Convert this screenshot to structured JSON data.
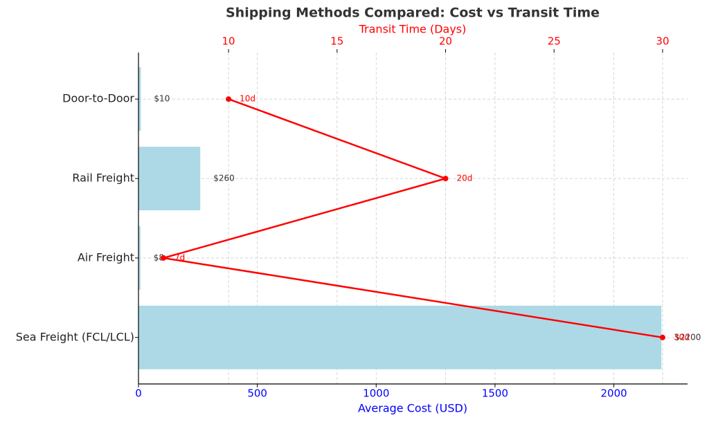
{
  "chart_data": {
    "type": "bar",
    "orientation": "horizontal",
    "title": "Shipping Methods Compared: Cost vs Transit Time",
    "xlabel": "Average Cost (USD)",
    "x2label": "Transit Time (Days)",
    "categories": [
      "Door-to-Door",
      "Rail Freight",
      "Air Freight",
      "Sea Freight (FCL/LCL)"
    ],
    "series": [
      {
        "type": "bar",
        "axis": "x",
        "color": "#add8e6",
        "values": [
          10,
          260,
          8,
          2200
        ],
        "value_labels": [
          "$10",
          "$260",
          "$8",
          "$2200"
        ]
      },
      {
        "type": "line",
        "axis": "x2",
        "color": "#ff0000",
        "values": [
          10,
          20,
          7,
          30
        ],
        "value_labels": [
          "10d",
          "20d",
          "7d",
          "30d"
        ]
      }
    ],
    "xlim": [
      0,
      2310
    ],
    "xticks": [
      0,
      500,
      1000,
      1500,
      2000
    ],
    "x2lim": [
      5.85,
      31.15
    ],
    "x2ticks": [
      10,
      15,
      20,
      25,
      30
    ],
    "xcolor": "#0000ff",
    "x2color": "#ff0000",
    "grid": true
  }
}
